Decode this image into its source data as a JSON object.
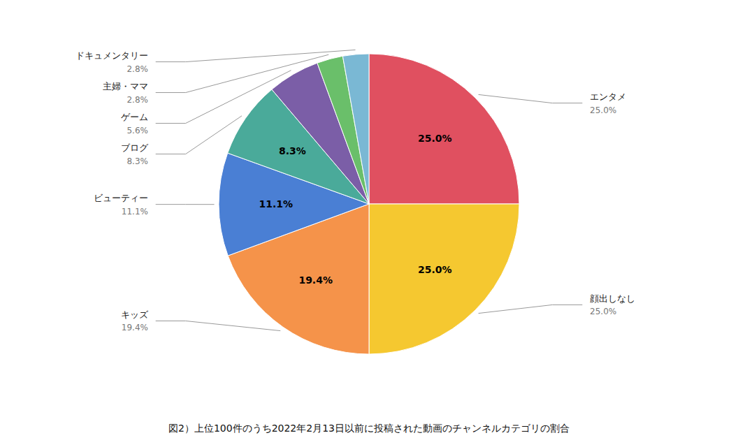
{
  "chart_data": {
    "type": "pie",
    "title": "図2）上位100件のうち2022年2月13日以前に投稿された動画のチャンネルカテゴリの割合",
    "categories": [
      "エンタメ",
      "顔出しなし",
      "キッズ",
      "ビューティー",
      "ブログ",
      "ゲーム",
      "主婦・ママ",
      "ドキュメンタリー"
    ],
    "values": [
      25.0,
      25.0,
      19.4,
      11.1,
      8.3,
      5.6,
      2.8,
      2.8
    ],
    "value_labels": [
      "25.0%",
      "25.0%",
      "19.4%",
      "11.1%",
      "8.3%",
      "5.6%",
      "2.8%",
      "2.8%"
    ],
    "colors": [
      "#e05060",
      "#f5c830",
      "#f5934a",
      "#4a7fd4",
      "#4aaa9a",
      "#7b5ea7",
      "#6abf6a",
      "#7ab8d4"
    ],
    "data_labels": true
  }
}
